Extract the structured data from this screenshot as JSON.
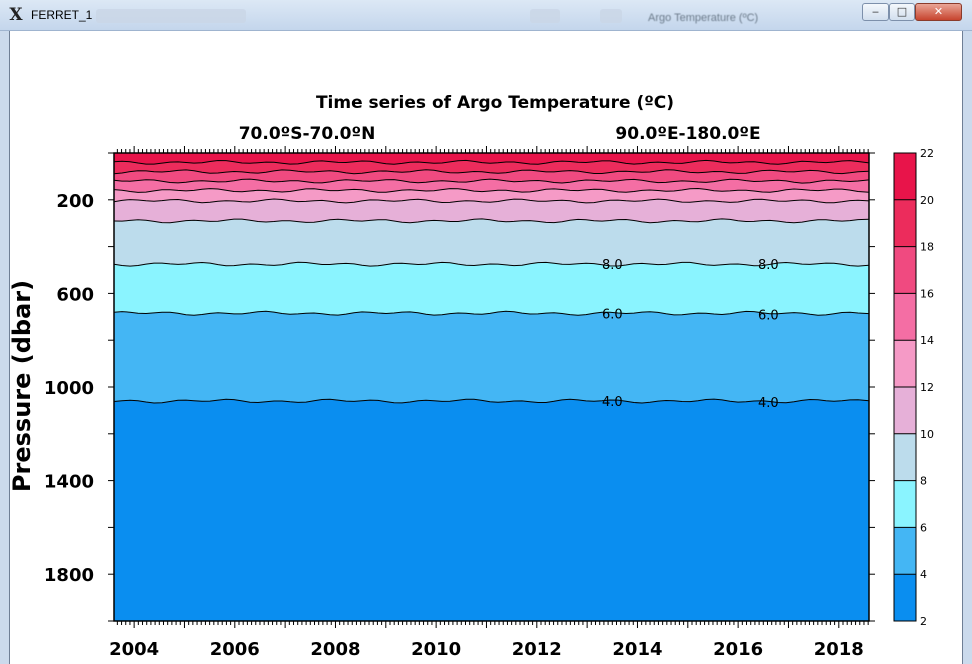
{
  "window": {
    "title": "FERRET_1",
    "app_icon": "ferret-x-icon",
    "blurred_title": "Argo Temperature (ºC)",
    "minimize_label": "‒",
    "maximize_label": "□",
    "close_label": "✕"
  },
  "colors": {
    "bands": [
      "#0a8ef0",
      "#44b6f4",
      "#8af4ff",
      "#bcdcec",
      "#e6b0d8",
      "#f59ac6",
      "#f46ea4",
      "#f04a80",
      "#ec2c5c",
      "#e8144a"
    ],
    "contour": "#000000"
  },
  "chart_data": {
    "type": "heatmap",
    "title": "Time series of Argo Temperature (ºC)",
    "subtitle_lat": "70.0ºS-70.0ºN",
    "subtitle_lon": "90.0ºE-180.0ºE",
    "xlabel": "",
    "ylabel": "Pressure (dbar)",
    "xlim": [
      2003.6,
      2018.6
    ],
    "ylim": [
      2000,
      0
    ],
    "x_ticks": [
      "2004",
      "2006",
      "2008",
      "2010",
      "2012",
      "2014",
      "2016",
      "2018"
    ],
    "y_ticks": [
      "200",
      "600",
      "1000",
      "1400",
      "1800"
    ],
    "colorbar": {
      "levels": [
        "22",
        "20",
        "18",
        "16",
        "14",
        "12",
        "10",
        "8",
        "6",
        "4",
        "2"
      ],
      "range": [
        2,
        22
      ],
      "step": 2
    },
    "isotherms": [
      {
        "temp": 20,
        "depth": 40
      },
      {
        "temp": 18,
        "depth": 80
      },
      {
        "temp": 16,
        "depth": 120
      },
      {
        "temp": 14,
        "depth": 160
      },
      {
        "temp": 12,
        "depth": 205
      },
      {
        "temp": 10,
        "depth": 290
      },
      {
        "temp": 8,
        "depth": 475
      },
      {
        "temp": 6,
        "depth": 685
      },
      {
        "temp": 4,
        "depth": 1060
      }
    ],
    "contour_labels": [
      {
        "text": "8.0",
        "x": 2013.5,
        "depth": 475
      },
      {
        "text": "8.0",
        "x": 2016.6,
        "depth": 475
      },
      {
        "text": "6.0",
        "x": 2013.5,
        "depth": 685
      },
      {
        "text": "6.0",
        "x": 2016.6,
        "depth": 690
      },
      {
        "text": "4.0",
        "x": 2013.5,
        "depth": 1060
      },
      {
        "text": "4.0",
        "x": 2016.6,
        "depth": 1065
      }
    ],
    "grid": false
  }
}
